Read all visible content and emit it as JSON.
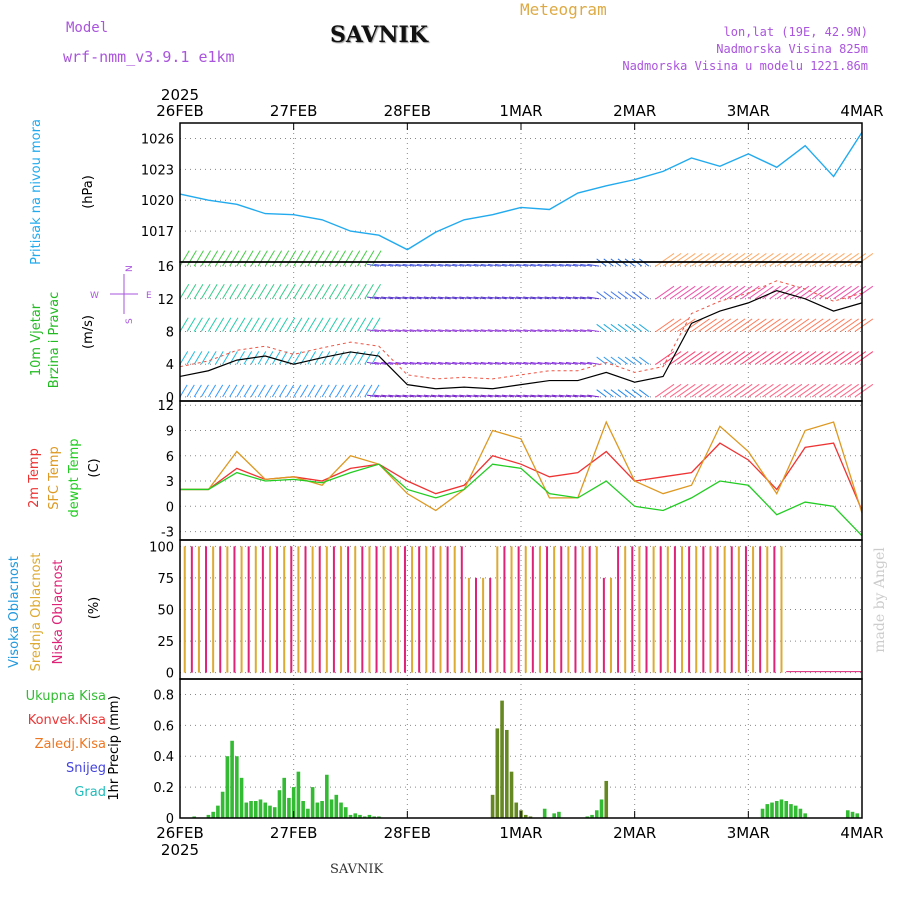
{
  "header": {
    "model_label": "Model",
    "model_name": "wrf-nmm_v3.9.1  e1km",
    "station": "SAVNIK",
    "meteogram": "Meteogram",
    "lonlat": "lon,lat (19E, 42.9N)",
    "elevation": "Nadmorska Visina 825m",
    "model_elevation": "Nadmorska Visina u modelu 1221.86m",
    "footer_station": "SAVNIK",
    "watermark": "made by Angel"
  },
  "colors": {
    "pressure": "#22aaee",
    "temp2m": "#ee3333",
    "sfc": "#dd9922",
    "dew": "#22cc22",
    "cloud_high": "#2299dd",
    "cloud_mid": "#ddaa33",
    "cloud_low": "#dd2277",
    "precip_total": "#33bb33",
    "precip_conv": "#ee3333",
    "precip_freeze": "#ee7722",
    "precip_snow": "#4444dd",
    "precip_hail": "#22bbbb",
    "header_purple": "#aa55dd",
    "header_orange": "#ddaa44"
  },
  "chart_data": [
    {
      "type": "line",
      "panel": "pressure",
      "ylabel": "Pritisak na nivou mora",
      "unit": "(hPa)",
      "x_ticks": [
        "26FEB",
        "27FEB",
        "28FEB",
        "1MAR",
        "2MAR",
        "3MAR",
        "4MAR"
      ],
      "year": "2025",
      "ylim": [
        1014,
        1027.5
      ],
      "yticks": [
        "1017",
        "1020",
        "1023",
        "1026"
      ],
      "x": [
        0,
        6,
        12,
        18,
        24,
        30,
        36,
        42,
        48,
        54,
        60,
        66,
        72,
        78,
        84,
        90,
        96,
        102,
        108,
        114,
        120,
        126,
        132,
        138,
        144
      ],
      "values": [
        1020.6,
        1020.0,
        1019.6,
        1018.7,
        1018.6,
        1018.1,
        1017.0,
        1016.6,
        1015.2,
        1016.9,
        1018.1,
        1018.6,
        1019.3,
        1019.1,
        1020.7,
        1021.4,
        1022.0,
        1022.8,
        1024.1,
        1023.3,
        1024.5,
        1023.2,
        1025.3,
        1022.3,
        1026.6
      ],
      "grid": true
    },
    {
      "type": "line",
      "panel": "wind",
      "ylabel": "10m Vjetar",
      "ylabel2": "Brzina i Pravac",
      "unit": "(m/s)",
      "compass_n": "N",
      "compass_s": "S",
      "compass_e": "E",
      "compass_w": "W",
      "ylim": [
        -0.5,
        16.5
      ],
      "yticks": [
        "0",
        "4",
        "8",
        "12",
        "16"
      ],
      "x": [
        0,
        6,
        12,
        18,
        24,
        30,
        36,
        42,
        48,
        54,
        60,
        66,
        72,
        78,
        84,
        90,
        96,
        102,
        108,
        114,
        120,
        126,
        132,
        138,
        144
      ],
      "values": [
        2.5,
        3.2,
        4.5,
        5.0,
        4.0,
        4.8,
        5.5,
        5.0,
        1.5,
        1.0,
        1.2,
        1.0,
        1.5,
        2.0,
        2.0,
        3.0,
        1.8,
        2.5,
        9.0,
        10.5,
        11.5,
        13.0,
        12.0,
        10.5,
        11.5
      ],
      "grid": true
    },
    {
      "type": "line",
      "panel": "temperature",
      "ylabel": "2m Temp",
      "ylabel2": "SFC Temp",
      "ylabel3": "dewpt Temp",
      "unit": "(C)",
      "ylim": [
        -4,
        12.5
      ],
      "yticks": [
        "-3",
        "0",
        "3",
        "6",
        "9",
        "12"
      ],
      "x": [
        0,
        6,
        12,
        18,
        24,
        30,
        36,
        42,
        48,
        54,
        60,
        66,
        72,
        78,
        84,
        90,
        96,
        102,
        108,
        114,
        120,
        126,
        132,
        138,
        144
      ],
      "series": [
        {
          "name": "2m Temp",
          "values": [
            2.0,
            2.0,
            4.5,
            3.2,
            3.5,
            3.0,
            4.5,
            5.0,
            3.0,
            1.5,
            2.5,
            6.0,
            5.0,
            3.5,
            4.0,
            6.5,
            3.0,
            3.5,
            4.0,
            7.5,
            5.5,
            2.0,
            7.0,
            7.5,
            -0.5
          ]
        },
        {
          "name": "SFC Temp",
          "values": [
            2.0,
            2.0,
            6.5,
            3.2,
            3.5,
            2.5,
            6.0,
            5.0,
            1.5,
            -0.5,
            2.0,
            9.0,
            8.0,
            1.0,
            1.0,
            10.0,
            3.0,
            1.5,
            2.5,
            9.5,
            6.5,
            1.5,
            9.0,
            10.0,
            -0.8
          ]
        },
        {
          "name": "dewpt Temp",
          "values": [
            2.0,
            2.0,
            4.0,
            3.0,
            3.2,
            2.8,
            4.0,
            5.0,
            2.0,
            1.0,
            2.0,
            5.0,
            4.5,
            1.5,
            1.0,
            3.0,
            0.0,
            -0.5,
            1.0,
            3.0,
            2.5,
            -1.0,
            0.5,
            0.0,
            -3.5
          ]
        }
      ],
      "grid": true
    },
    {
      "type": "bar",
      "panel": "cloud",
      "ylabel": "Visoka Oblacnost",
      "ylabel2": "Srednja Oblacnost",
      "ylabel3": "Niska Oblacnost",
      "unit": "(%)",
      "ylim": [
        -5,
        105
      ],
      "yticks": [
        "0",
        "25",
        "50",
        "75",
        "100"
      ],
      "series": [
        {
          "name": "Visoka Oblacnost",
          "note": "high cloud near 100% from 26FEB to 3MAR 06h"
        },
        {
          "name": "Srednja Oblacnost",
          "note": "mid cloud near 100% from 26FEB to 3MAR 06h"
        },
        {
          "name": "Niska Oblacnost",
          "note": "low cloud near 100% from 26FEB to 3MAR 06h"
        }
      ],
      "cover_until_hour": 128,
      "grid": true
    },
    {
      "type": "bar",
      "panel": "precip",
      "ylabel": "1hr Precip (mm)",
      "legend": [
        "Ukupna Kisa",
        "Konvek.Kisa",
        "Zaledj.Kisa",
        "Snijeg",
        "Grad"
      ],
      "ylim": [
        0,
        0.9
      ],
      "yticks": [
        "0",
        "0.2",
        "0.4",
        "0.6",
        "0.8"
      ],
      "x_ticks": [
        "26FEB",
        "27FEB",
        "28FEB",
        "1MAR",
        "2MAR",
        "3MAR",
        "4MAR"
      ],
      "year": "2025",
      "series": [
        {
          "name": "Ukupna Kisa",
          "x": [
            3,
            6,
            7,
            8,
            9,
            10,
            11,
            12,
            13,
            14,
            15,
            16,
            17,
            18,
            19,
            20,
            21,
            22,
            23,
            24,
            25,
            26,
            27,
            28,
            29,
            30,
            31,
            32,
            33,
            34,
            35,
            36,
            37,
            38,
            39,
            40,
            41,
            42,
            66,
            67,
            68,
            69,
            70,
            71,
            72,
            73,
            74,
            77,
            79,
            80,
            86,
            87,
            88,
            89,
            90,
            123,
            124,
            125,
            126,
            127,
            128,
            129,
            130,
            131,
            132,
            141,
            142,
            143
          ],
          "values": [
            0.01,
            0.02,
            0.04,
            0.08,
            0.17,
            0.4,
            0.5,
            0.4,
            0.26,
            0.1,
            0.11,
            0.11,
            0.12,
            0.1,
            0.08,
            0.07,
            0.18,
            0.26,
            0.13,
            0.2,
            0.3,
            0.11,
            0.06,
            0.2,
            0.1,
            0.11,
            0.28,
            0.12,
            0.15,
            0.1,
            0.07,
            0.02,
            0.03,
            0.02,
            0.01,
            0.02,
            0.01,
            0.01,
            0.15,
            0.58,
            0.76,
            0.57,
            0.3,
            0.1,
            0.05,
            0.02,
            0.01,
            0.06,
            0.03,
            0.04,
            0.01,
            0.02,
            0.05,
            0.12,
            0.24,
            0.06,
            0.09,
            0.1,
            0.11,
            0.12,
            0.11,
            0.09,
            0.08,
            0.06,
            0.03,
            0.05,
            0.04,
            0.03
          ]
        }
      ],
      "grid": true
    }
  ]
}
